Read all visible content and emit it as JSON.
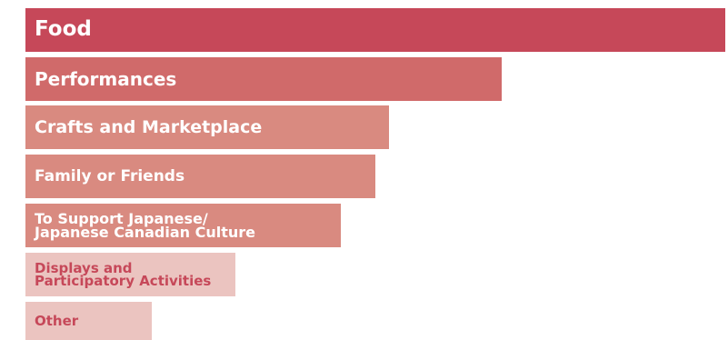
{
  "chart_data": {
    "type": "bar",
    "orientation": "horizontal",
    "categories": [
      "Food",
      "Performances",
      "Crafts and Marketplace",
      "Family or Friends",
      "To Support Japanese/\nJapanese Canadian Culture",
      "Displays and\nParticipatory Activities",
      "Other"
    ],
    "values": [
      100,
      68,
      52,
      50,
      45,
      30,
      18
    ],
    "xlim": [
      0,
      100
    ],
    "grid": false,
    "legend": "none",
    "bar_colors": [
      "#c64859",
      "#d06a6a",
      "#d98a80",
      "#d98a80",
      "#d98a80",
      "#ebc4c0",
      "#ebc4c0"
    ],
    "label_colors": [
      "#ffffff",
      "#ffffff",
      "#ffffff",
      "#ffffff",
      "#ffffff",
      "#c64859",
      "#c64859"
    ]
  }
}
